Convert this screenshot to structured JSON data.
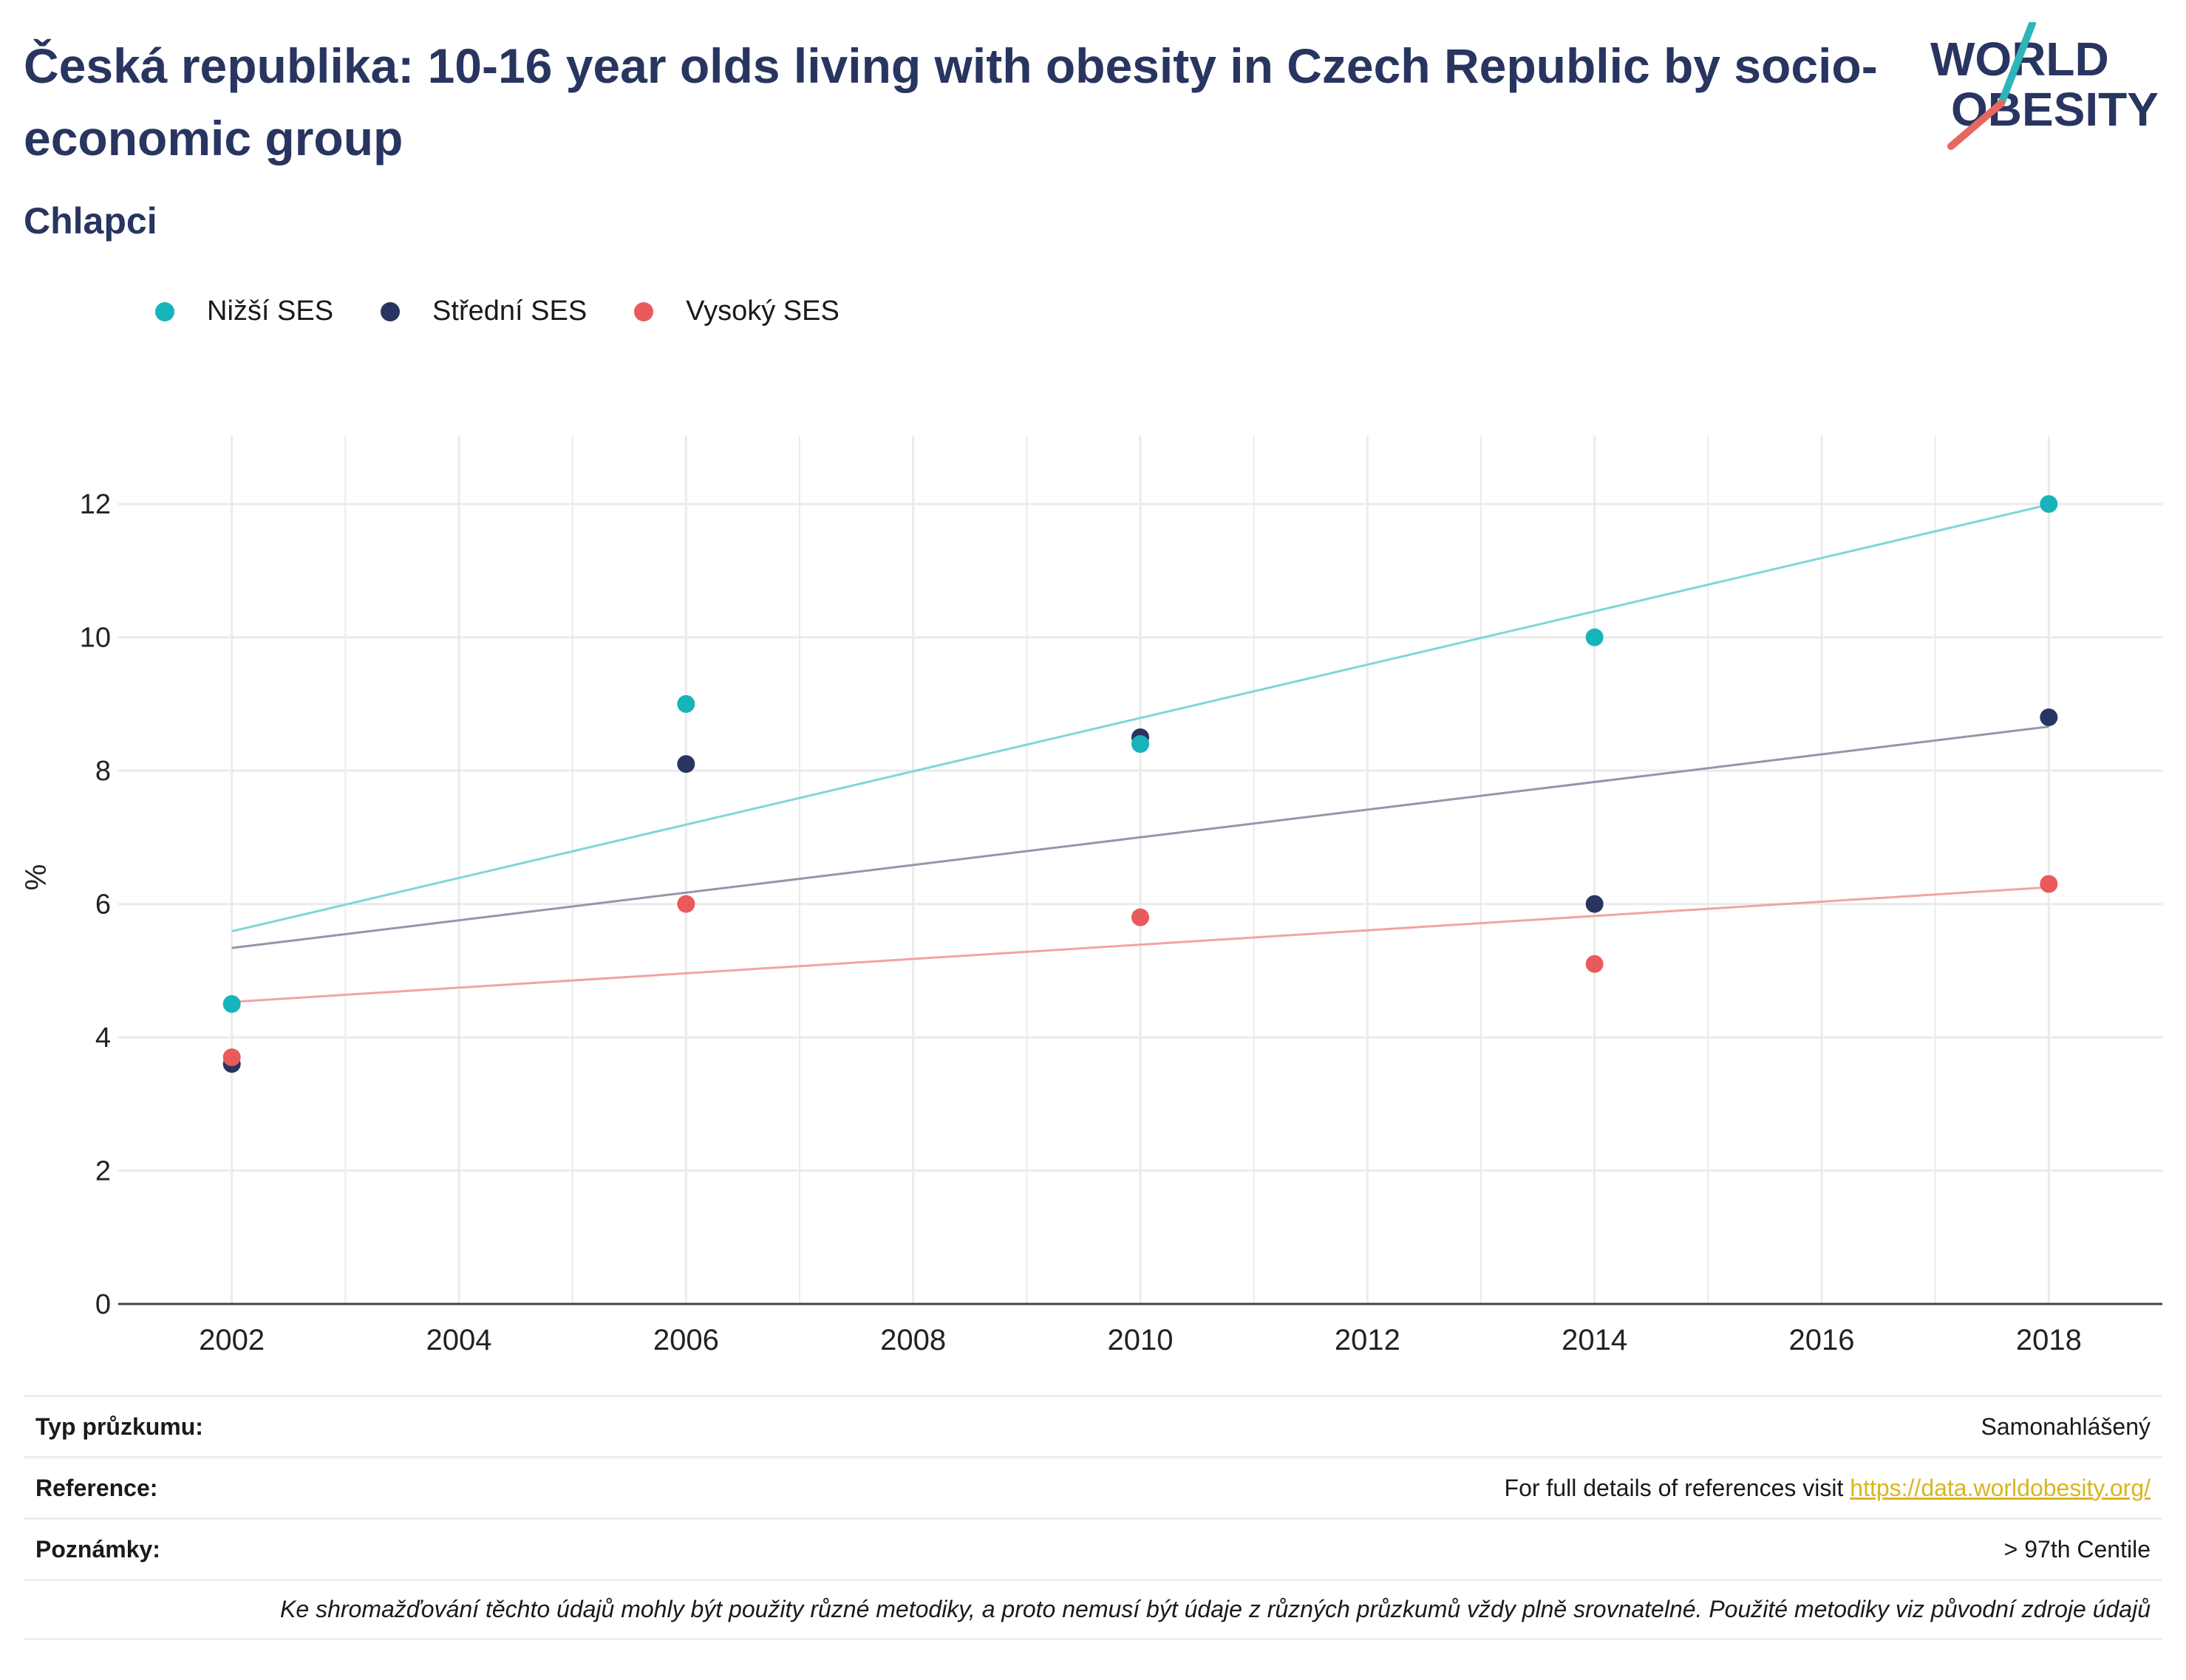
{
  "header": {
    "title": "Česká republika: 10-16 year olds living with obesity in Czech Republic by socio-economic group",
    "subtitle": "Chlapci"
  },
  "logo": {
    "line1": "WORLD",
    "line2": "OBESITY",
    "colors": {
      "text": "#283560",
      "slash_top": "#2db5b8",
      "slash_bottom": "#e8675f"
    }
  },
  "colors": {
    "low": "#16b4bb",
    "mid": "#283560",
    "high": "#e95a5c",
    "grid": "#ebebeb",
    "axis": "#444444"
  },
  "chart_data": {
    "type": "scatter",
    "title": "",
    "xlabel": "",
    "ylabel": "%",
    "xlim": [
      2001,
      2019
    ],
    "ylim": [
      0,
      12.8
    ],
    "x_ticks": [
      2002,
      2004,
      2006,
      2008,
      2010,
      2012,
      2014,
      2016,
      2018
    ],
    "y_ticks": [
      0,
      2,
      4,
      6,
      8,
      10,
      12
    ],
    "grid": true,
    "legend_position": "top-left",
    "x": [
      2002,
      2006,
      2010,
      2014,
      2018
    ],
    "series": [
      {
        "name": "Nižší SES",
        "color": "#16b4bb",
        "trend_color": "#7fd6d9",
        "values": [
          4.5,
          9.0,
          8.4,
          10.0,
          12.0
        ],
        "trend": [
          5.59,
          11.99
        ]
      },
      {
        "name": "Střední SES",
        "color": "#283560",
        "trend_color": "#9696aa",
        "values": [
          3.6,
          8.1,
          8.5,
          6.0,
          8.8
        ],
        "trend": [
          5.34,
          8.66
        ]
      },
      {
        "name": "Vysoký SES",
        "color": "#e95a5c",
        "trend_color": "#f2a3a4",
        "values": [
          3.7,
          6.0,
          5.8,
          5.1,
          6.3
        ],
        "trend": [
          4.53,
          6.25
        ]
      }
    ]
  },
  "info": {
    "survey_type_label": "Typ průzkumu:",
    "survey_type_value": "Samonahlášený",
    "reference_label": "Reference:",
    "reference_text": "For full details of references visit ",
    "reference_link": "https://data.worldobesity.org/",
    "notes_label": "Poznámky:",
    "notes_value": "> 97th Centile",
    "disclaimer": "Ke shromažďování těchto údajů mohly být použity různé metodiky, a proto nemusí být údaje z různých průzkumů vždy plně srovnatelné. Použité metodiky viz původní zdroje údajů"
  }
}
